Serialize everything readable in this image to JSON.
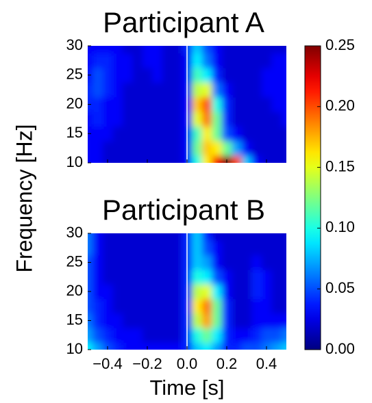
{
  "chart_data": [
    {
      "type": "heatmap",
      "title": "Participant A",
      "x": [
        -0.5,
        -0.45,
        -0.4,
        -0.35,
        -0.3,
        -0.25,
        -0.2,
        -0.15,
        -0.1,
        -0.05,
        0,
        0.05,
        0.1,
        0.15,
        0.2,
        0.25,
        0.3,
        0.35,
        0.4,
        0.45,
        0.5
      ],
      "y": [
        10,
        12.5,
        15,
        17.5,
        20,
        22.5,
        25,
        27.5,
        30
      ],
      "z": [
        [
          0.03,
          0.03,
          0.02,
          0.02,
          0.02,
          0.02,
          0.02,
          0.02,
          0.02,
          0.02,
          0.03,
          0.1,
          0.16,
          0.22,
          0.25,
          0.2,
          0.08,
          0.03,
          0.02,
          0.02,
          0.02
        ],
        [
          0.03,
          0.03,
          0.02,
          0.02,
          0.02,
          0.02,
          0.02,
          0.02,
          0.02,
          0.02,
          0.03,
          0.12,
          0.17,
          0.16,
          0.12,
          0.07,
          0.03,
          0.02,
          0.02,
          0.02,
          0.02
        ],
        [
          0.03,
          0.03,
          0.03,
          0.02,
          0.02,
          0.02,
          0.02,
          0.02,
          0.02,
          0.02,
          0.03,
          0.11,
          0.16,
          0.12,
          0.05,
          0.03,
          0.02,
          0.02,
          0.02,
          0.02,
          0.02
        ],
        [
          0.03,
          0.04,
          0.03,
          0.03,
          0.02,
          0.02,
          0.02,
          0.02,
          0.02,
          0.02,
          0.03,
          0.15,
          0.19,
          0.12,
          0.04,
          0.02,
          0.02,
          0.02,
          0.02,
          0.02,
          0.03
        ],
        [
          0.04,
          0.04,
          0.03,
          0.03,
          0.02,
          0.02,
          0.02,
          0.02,
          0.02,
          0.02,
          0.03,
          0.17,
          0.2,
          0.1,
          0.04,
          0.02,
          0.02,
          0.02,
          0.02,
          0.03,
          0.03
        ],
        [
          0.04,
          0.05,
          0.04,
          0.03,
          0.02,
          0.02,
          0.02,
          0.02,
          0.02,
          0.02,
          0.03,
          0.14,
          0.15,
          0.06,
          0.03,
          0.02,
          0.02,
          0.02,
          0.03,
          0.03,
          0.03
        ],
        [
          0.03,
          0.05,
          0.04,
          0.03,
          0.03,
          0.02,
          0.02,
          0.03,
          0.02,
          0.02,
          0.03,
          0.11,
          0.09,
          0.04,
          0.02,
          0.02,
          0.02,
          0.02,
          0.03,
          0.03,
          0.03
        ],
        [
          0.03,
          0.04,
          0.04,
          0.03,
          0.03,
          0.02,
          0.03,
          0.03,
          0.02,
          0.02,
          0.03,
          0.09,
          0.06,
          0.03,
          0.02,
          0.02,
          0.02,
          0.02,
          0.02,
          0.03,
          0.03
        ],
        [
          0.03,
          0.03,
          0.03,
          0.03,
          0.02,
          0.02,
          0.03,
          0.03,
          0.02,
          0.02,
          0.04,
          0.08,
          0.05,
          0.03,
          0.02,
          0.02,
          0.02,
          0.02,
          0.02,
          0.02,
          0.02
        ]
      ],
      "xlim": [
        -0.5,
        0.5
      ],
      "ylim": [
        10,
        30
      ],
      "yticks": [
        10,
        15,
        20,
        25,
        30
      ]
    },
    {
      "type": "heatmap",
      "title": "Participant B",
      "x": [
        -0.5,
        -0.45,
        -0.4,
        -0.35,
        -0.3,
        -0.25,
        -0.2,
        -0.15,
        -0.1,
        -0.05,
        0,
        0.05,
        0.1,
        0.15,
        0.2,
        0.25,
        0.3,
        0.35,
        0.4,
        0.45,
        0.5
      ],
      "y": [
        10,
        12.5,
        15,
        17.5,
        20,
        22.5,
        25,
        27.5,
        30
      ],
      "z": [
        [
          0.09,
          0.07,
          0.05,
          0.04,
          0.03,
          0.03,
          0.03,
          0.03,
          0.03,
          0.03,
          0.04,
          0.08,
          0.09,
          0.07,
          0.04,
          0.04,
          0.05,
          0.05,
          0.06,
          0.07,
          0.08
        ],
        [
          0.07,
          0.05,
          0.04,
          0.03,
          0.03,
          0.03,
          0.02,
          0.02,
          0.02,
          0.02,
          0.04,
          0.1,
          0.12,
          0.09,
          0.04,
          0.03,
          0.03,
          0.04,
          0.05,
          0.05,
          0.06
        ],
        [
          0.06,
          0.04,
          0.03,
          0.03,
          0.02,
          0.02,
          0.02,
          0.02,
          0.02,
          0.02,
          0.04,
          0.14,
          0.18,
          0.12,
          0.04,
          0.02,
          0.02,
          0.03,
          0.03,
          0.03,
          0.03
        ],
        [
          0.05,
          0.04,
          0.03,
          0.02,
          0.02,
          0.02,
          0.02,
          0.02,
          0.02,
          0.02,
          0.04,
          0.16,
          0.19,
          0.12,
          0.04,
          0.02,
          0.02,
          0.03,
          0.03,
          0.02,
          0.02
        ],
        [
          0.05,
          0.03,
          0.03,
          0.02,
          0.02,
          0.02,
          0.02,
          0.02,
          0.02,
          0.02,
          0.04,
          0.14,
          0.15,
          0.09,
          0.03,
          0.02,
          0.02,
          0.04,
          0.03,
          0.02,
          0.02
        ],
        [
          0.05,
          0.03,
          0.02,
          0.02,
          0.02,
          0.02,
          0.02,
          0.02,
          0.02,
          0.02,
          0.04,
          0.1,
          0.09,
          0.05,
          0.03,
          0.02,
          0.02,
          0.04,
          0.03,
          0.02,
          0.02
        ],
        [
          0.05,
          0.03,
          0.02,
          0.02,
          0.02,
          0.02,
          0.02,
          0.02,
          0.02,
          0.02,
          0.04,
          0.08,
          0.07,
          0.03,
          0.02,
          0.02,
          0.02,
          0.03,
          0.02,
          0.02,
          0.02
        ],
        [
          0.06,
          0.03,
          0.02,
          0.02,
          0.02,
          0.02,
          0.02,
          0.02,
          0.02,
          0.02,
          0.04,
          0.08,
          0.05,
          0.03,
          0.02,
          0.02,
          0.02,
          0.02,
          0.02,
          0.02,
          0.02
        ],
        [
          0.06,
          0.03,
          0.02,
          0.02,
          0.02,
          0.02,
          0.02,
          0.02,
          0.02,
          0.02,
          0.04,
          0.08,
          0.04,
          0.02,
          0.02,
          0.02,
          0.02,
          0.02,
          0.02,
          0.02,
          0.02
        ]
      ],
      "xlim": [
        -0.5,
        0.5
      ],
      "ylim": [
        10,
        30
      ],
      "yticks": [
        10,
        15,
        20,
        25,
        30
      ],
      "xticks": [
        {
          "value": -0.4,
          "label": "−0.4"
        },
        {
          "value": -0.2,
          "label": "−0.2"
        },
        {
          "value": 0,
          "label": "0.0"
        },
        0.2,
        0.4
      ]
    }
  ],
  "figure": {
    "ylabel": "Frequency [Hz]",
    "xlabel": "Time [s]",
    "colorbar": {
      "colormap": "jet",
      "lim": [
        0,
        0.25
      ],
      "ticks": [
        {
          "value": 0,
          "label": "0.00"
        },
        0.05,
        {
          "value": 0.1,
          "label": "0.10"
        },
        0.15,
        {
          "value": 0.2,
          "label": "0.20"
        },
        0.25
      ]
    }
  }
}
